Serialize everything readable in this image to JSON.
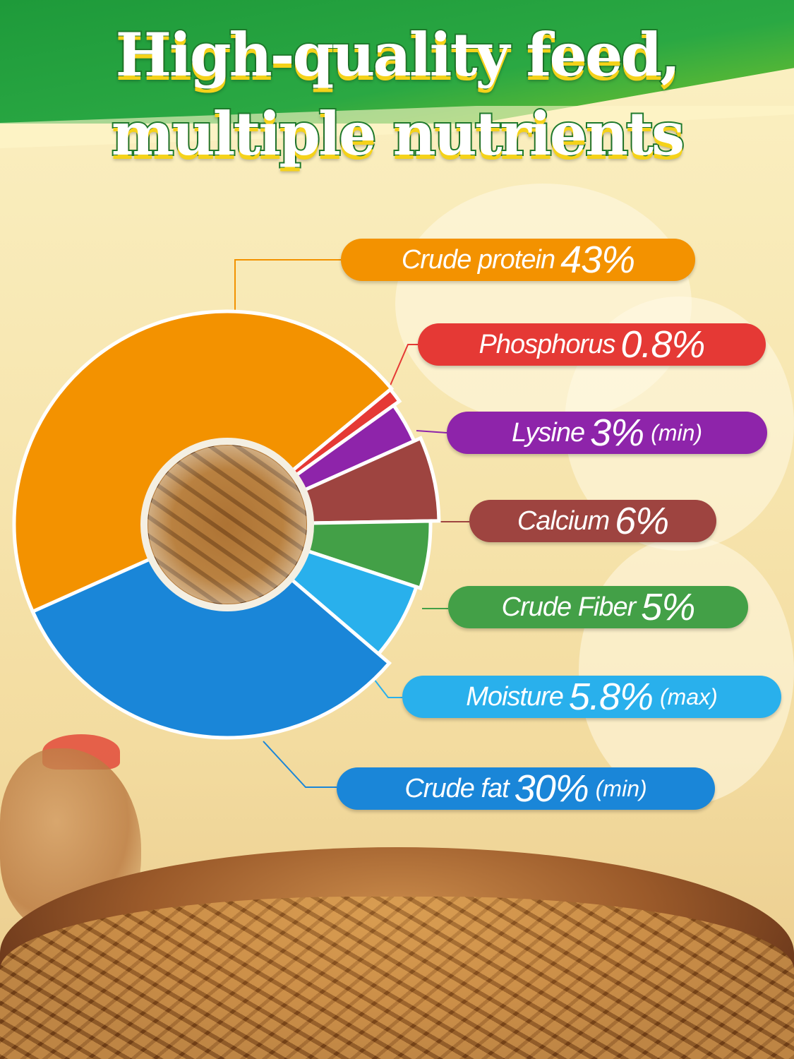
{
  "header": {
    "title_line1": "High-quality feed,",
    "title_line2": "multiple nutrients"
  },
  "chart_data": {
    "type": "pie",
    "style": "donut",
    "center_image": "dried-mealworms",
    "legend_placement": "right",
    "slices": [
      {
        "name": "Crude protein",
        "value": 43,
        "label_value": "43%",
        "qualifier": "",
        "color": "#f39200"
      },
      {
        "name": "Phosphorus",
        "value": 0.8,
        "label_value": "0.8%",
        "qualifier": "",
        "color": "#e53935"
      },
      {
        "name": "Lysine",
        "value": 3,
        "label_value": "3%",
        "qualifier": "(min)",
        "color": "#8e24aa"
      },
      {
        "name": "Calcium",
        "value": 6,
        "label_value": "6%",
        "qualifier": "",
        "color": "#9e4440"
      },
      {
        "name": "Crude Fiber",
        "value": 5,
        "label_value": "5%",
        "qualifier": "",
        "color": "#43a047"
      },
      {
        "name": "Moisture",
        "value": 5.8,
        "label_value": "5.8%",
        "qualifier": "(max)",
        "color": "#29b0ec"
      },
      {
        "name": "Crude fat",
        "value": 30,
        "label_value": "30%",
        "qualifier": "(min)",
        "color": "#1a86d8"
      }
    ]
  }
}
